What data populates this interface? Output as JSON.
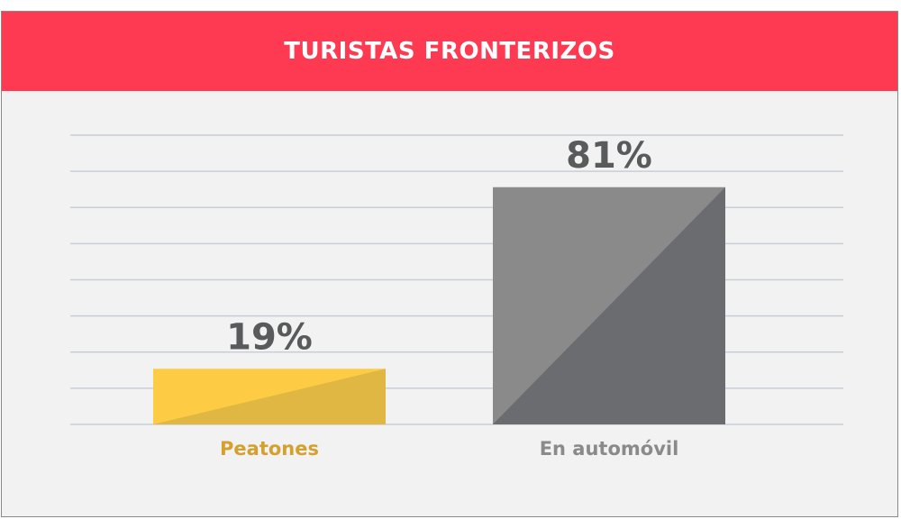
{
  "chart_data": {
    "type": "bar",
    "title": "TURISTAS FRONTERIZOS",
    "categories": [
      "Peatones",
      "En automóvil"
    ],
    "values": [
      19,
      81
    ],
    "value_labels": [
      "19%",
      "81%"
    ],
    "ylim": [
      0,
      100
    ],
    "grid": true,
    "colors": {
      "header": "#fe3a52",
      "bars_light": [
        "#fecb45",
        "#8a8a8a"
      ],
      "bars_dark": [
        "#dfb742",
        "#6a6c70"
      ],
      "category_labels": [
        "#d4a02e",
        "#8a8a8a"
      ],
      "gridlines": "#c8cdd6",
      "background": "#f2f2f2"
    }
  }
}
